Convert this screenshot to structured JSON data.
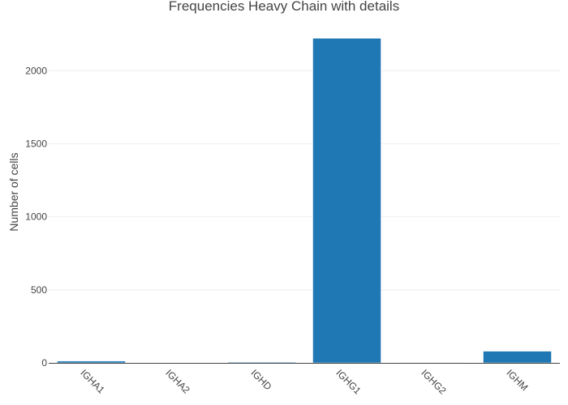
{
  "chart_data": {
    "type": "bar",
    "title": "Frequencies Heavy Chain with details",
    "xlabel": "",
    "ylabel": "Number of cells",
    "categories": [
      "IGHA1",
      "IGHA2",
      "IGHD",
      "IGHG1",
      "IGHG2",
      "IGHM"
    ],
    "values": [
      12,
      2,
      5,
      2222,
      1,
      80
    ],
    "ylim": [
      0,
      2340
    ],
    "yticks": [
      0,
      500,
      1000,
      1500,
      2000
    ],
    "ytick_labels": [
      "0",
      "500",
      "1000",
      "1500",
      "2000"
    ],
    "grid": true,
    "legend": "none",
    "bar_color": "#1f77b4"
  }
}
